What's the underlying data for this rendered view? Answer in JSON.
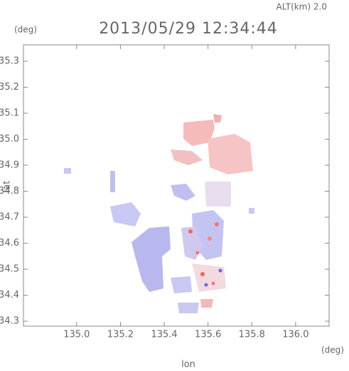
{
  "chart_data": {
    "type": "map",
    "title": "2013/05/29 12:34:44",
    "subtitle": "ALT(km) 2.0",
    "x_label": "lon",
    "y_label": "lat",
    "x_unit": "(deg)",
    "y_unit": "(deg)",
    "xlim": [
      134.757,
      136.153
    ],
    "ylim": [
      34.281,
      35.363
    ],
    "xticks": [
      {
        "value": 135,
        "label": "135.0"
      },
      135.2,
      135.4,
      135.6,
      135.8,
      {
        "value": 136,
        "label": "136.0"
      }
    ],
    "yticks": [
      34.3,
      34.4,
      34.5,
      34.6,
      34.7,
      34.8,
      34.9,
      {
        "value": 35,
        "label": "35.0"
      },
      35.1,
      35.2,
      35.3
    ]
  }
}
